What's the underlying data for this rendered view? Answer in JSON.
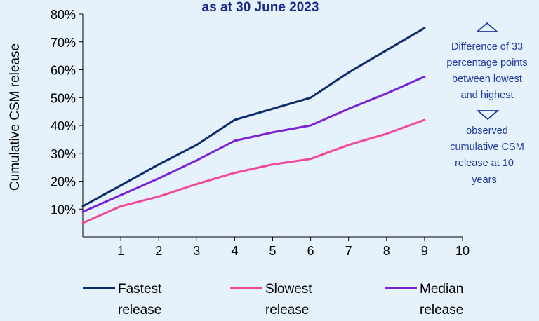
{
  "chart_data": {
    "type": "line",
    "title": "as at 30 June 2023",
    "xlabel": "",
    "ylabel": "Cumulative CSM release",
    "x": [
      0,
      1,
      2,
      3,
      4,
      5,
      6,
      7,
      8,
      9
    ],
    "xlim": [
      0,
      10
    ],
    "x_ticks": [
      "1",
      "2",
      "3",
      "4",
      "5",
      "6",
      "7",
      "8",
      "9",
      "10"
    ],
    "ylim": [
      0,
      80
    ],
    "y_ticks": [
      "10%",
      "20%",
      "30%",
      "40%",
      "50%",
      "60%",
      "70%",
      "80%"
    ],
    "grid": false,
    "legend_position": "bottom",
    "series": [
      {
        "name": "Fastest release",
        "color": "#0e2a6e",
        "values": [
          11,
          18.5,
          26,
          33,
          42,
          46,
          50,
          59,
          67,
          75
        ]
      },
      {
        "name": "Slowest release",
        "color": "#f0489a",
        "values": [
          5,
          11,
          14.5,
          19,
          23,
          26,
          28,
          33,
          37,
          42
        ]
      },
      {
        "name": "Median release",
        "color": "#7a22d6",
        "values": [
          9,
          15,
          21,
          27.5,
          34.5,
          37.5,
          40,
          46,
          51.5,
          57.5
        ]
      }
    ],
    "annotation": {
      "top_text": [
        "Difference of 33",
        "percentage points",
        "between lowest",
        "and highest"
      ],
      "bottom_text": [
        "observed",
        "cumulative CSM",
        "release at 10",
        "years"
      ]
    }
  }
}
